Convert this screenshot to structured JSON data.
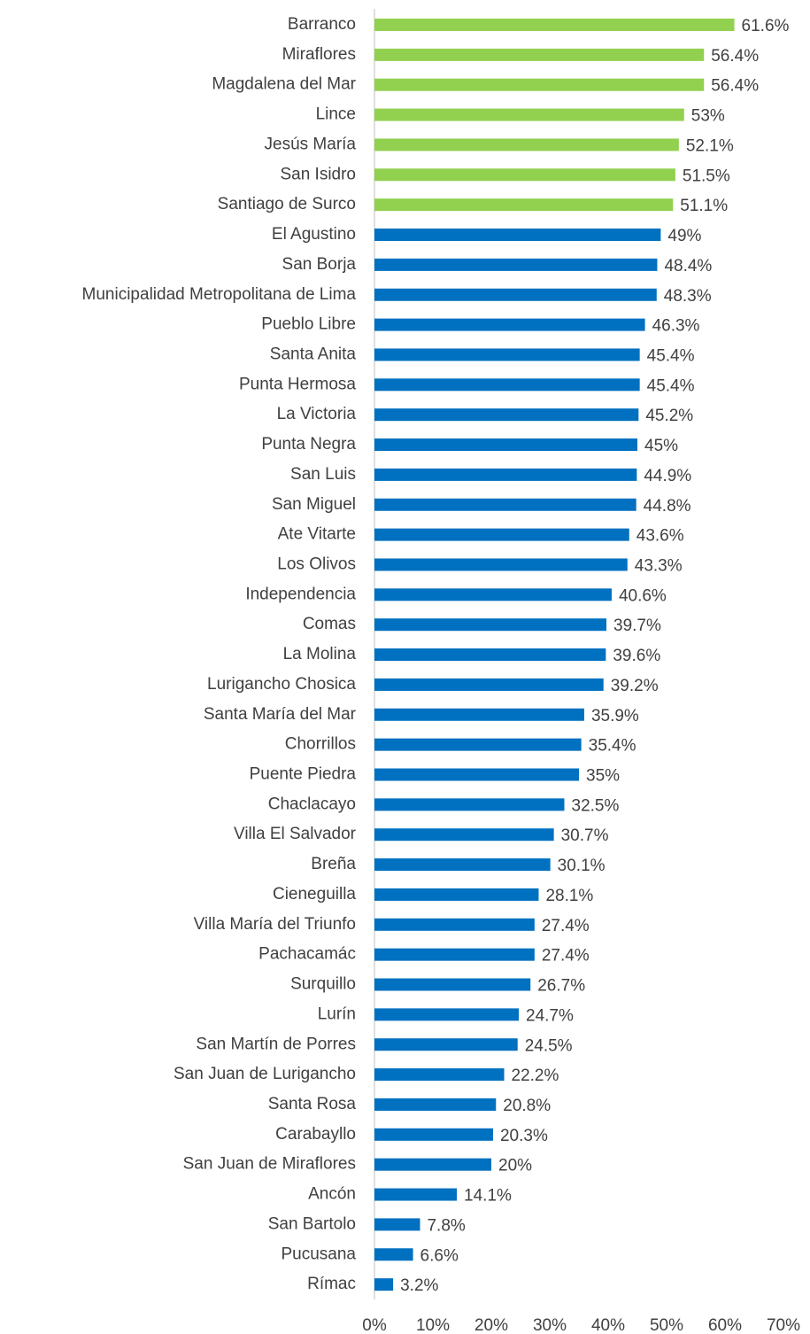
{
  "chart_data": {
    "type": "bar",
    "orientation": "horizontal",
    "categories": [
      "Barranco",
      "Miraflores",
      "Magdalena del Mar",
      "Lince",
      "Jesús María",
      "San Isidro",
      "Santiago de Surco",
      "El Agustino",
      "San Borja",
      "Municipalidad Metropolitana de Lima",
      "Pueblo Libre",
      "Santa Anita",
      "Punta Hermosa",
      "La Victoria",
      "Punta Negra",
      "San Luis",
      "San Miguel",
      "Ate Vitarte",
      "Los Olivos",
      "Independencia",
      "Comas",
      "La Molina",
      "Lurigancho Chosica",
      "Santa María del Mar",
      "Chorrillos",
      "Puente Piedra",
      "Chaclacayo",
      "Villa El Salvador",
      "Breña",
      "Cieneguilla",
      "Villa María del Triunfo",
      "Pachacamác",
      "Surquillo",
      "Lurín",
      "San Martín de Porres",
      "San Juan de Lurigancho",
      "Santa Rosa",
      "Carabayllo",
      "San Juan de Miraflores",
      "Ancón",
      "San Bartolo",
      "Pucusana",
      "Rímac"
    ],
    "values": [
      61.6,
      56.4,
      56.4,
      53,
      52.1,
      51.5,
      51.1,
      49,
      48.4,
      48.3,
      46.3,
      45.4,
      45.4,
      45.2,
      45,
      44.9,
      44.8,
      43.6,
      43.3,
      40.6,
      39.7,
      39.6,
      39.2,
      35.9,
      35.4,
      35,
      32.5,
      30.7,
      30.1,
      28.1,
      27.4,
      27.4,
      26.7,
      24.7,
      24.5,
      22.2,
      20.8,
      20.3,
      20,
      14.1,
      7.8,
      6.6,
      3.2
    ],
    "value_labels": [
      "61.6%",
      "56.4%",
      "56.4%",
      "53%",
      "52.1%",
      "51.5%",
      "51.1%",
      "49%",
      "48.4%",
      "48.3%",
      "46.3%",
      "45.4%",
      "45.4%",
      "45.2%",
      "45%",
      "44.9%",
      "44.8%",
      "43.6%",
      "43.3%",
      "40.6%",
      "39.7%",
      "39.6%",
      "39.2%",
      "35.9%",
      "35.4%",
      "35%",
      "32.5%",
      "30.7%",
      "30.1%",
      "28.1%",
      "27.4%",
      "27.4%",
      "26.7%",
      "24.7%",
      "24.5%",
      "22.2%",
      "20.8%",
      "20.3%",
      "20%",
      "14.1%",
      "7.8%",
      "6.6%",
      "3.2%"
    ],
    "colors": [
      "#92d050",
      "#92d050",
      "#92d050",
      "#92d050",
      "#92d050",
      "#92d050",
      "#92d050",
      "#0070c0",
      "#0070c0",
      "#0070c0",
      "#0070c0",
      "#0070c0",
      "#0070c0",
      "#0070c0",
      "#0070c0",
      "#0070c0",
      "#0070c0",
      "#0070c0",
      "#0070c0",
      "#0070c0",
      "#0070c0",
      "#0070c0",
      "#0070c0",
      "#0070c0",
      "#0070c0",
      "#0070c0",
      "#0070c0",
      "#0070c0",
      "#0070c0",
      "#0070c0",
      "#0070c0",
      "#0070c0",
      "#0070c0",
      "#0070c0",
      "#0070c0",
      "#0070c0",
      "#0070c0",
      "#0070c0",
      "#0070c0",
      "#0070c0",
      "#0070c0",
      "#0070c0",
      "#0070c0"
    ],
    "xlim": [
      0,
      70
    ],
    "xticks": [
      {
        "value": 0,
        "label": "0%"
      },
      {
        "value": 10,
        "label": "10%"
      },
      {
        "value": 20,
        "label": "20%"
      },
      {
        "value": 30,
        "label": "30%"
      },
      {
        "value": 40,
        "label": "40%"
      },
      {
        "value": 50,
        "label": "50%"
      },
      {
        "value": 60,
        "label": "60%"
      },
      {
        "value": 70,
        "label": "70%"
      }
    ],
    "grid": false
  }
}
